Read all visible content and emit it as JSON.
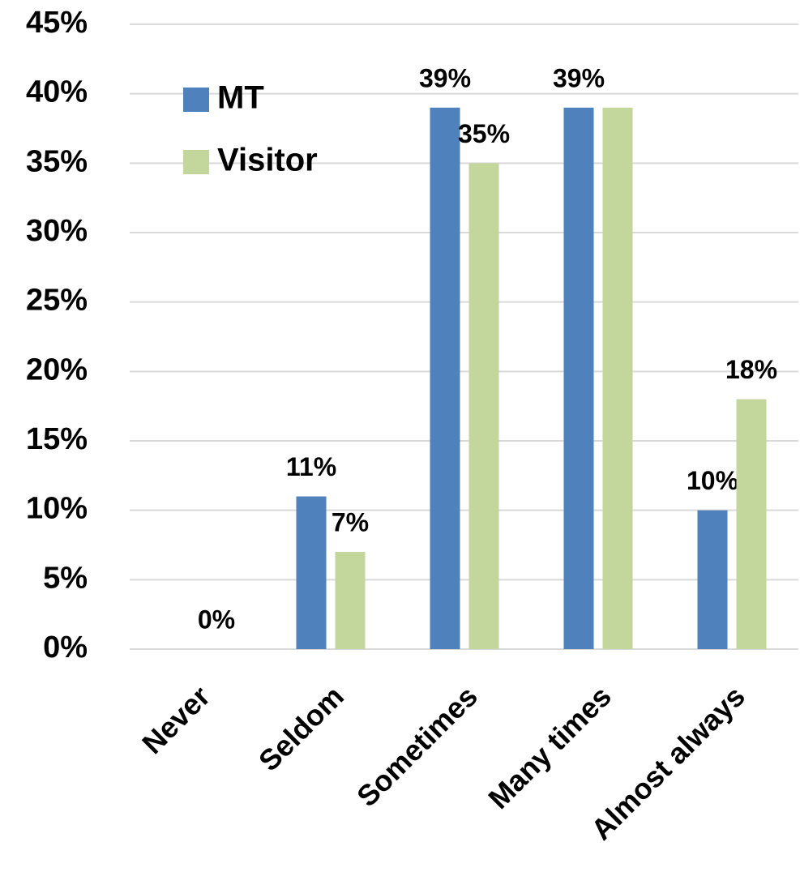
{
  "chart_data": {
    "type": "bar",
    "categories": [
      "Never",
      "Seldom",
      "Sometimes",
      "Many times",
      "Almost always"
    ],
    "series": [
      {
        "name": "MT",
        "color": "#4f81bd",
        "values": [
          0,
          11,
          39,
          39,
          10
        ],
        "value_labels": [
          null,
          "11%",
          "39%",
          "39%",
          "10%"
        ]
      },
      {
        "name": "Visitor",
        "color": "#c3d69b",
        "values": [
          0,
          7,
          35,
          39,
          18
        ],
        "value_labels": [
          "0%",
          "7%",
          "35%",
          null,
          "18%"
        ]
      }
    ],
    "ylim": [
      0,
      45
    ],
    "yticks": [
      {
        "value": 0,
        "label": "0%"
      },
      {
        "value": 5,
        "label": "5%"
      },
      {
        "value": 10,
        "label": "10%"
      },
      {
        "value": 15,
        "label": "15%"
      },
      {
        "value": 20,
        "label": "20%"
      },
      {
        "value": 25,
        "label": "25%"
      },
      {
        "value": 30,
        "label": "30%"
      },
      {
        "value": 35,
        "label": "35%"
      },
      {
        "value": 40,
        "label": "40%"
      },
      {
        "value": 45,
        "label": "45%"
      }
    ],
    "grid": true,
    "legend": "upper left"
  }
}
